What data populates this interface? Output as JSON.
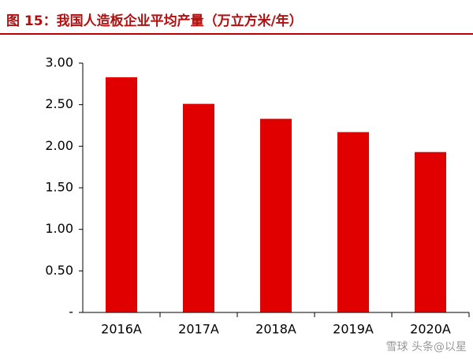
{
  "chart_data": {
    "type": "bar",
    "title": "图 15：我国人造板企业平均产量（万立方米/年）",
    "categories": [
      "2016A",
      "2017A",
      "2018A",
      "2019A",
      "2020A"
    ],
    "values": [
      2.83,
      2.51,
      2.33,
      2.17,
      1.93
    ],
    "color": "#e00000",
    "ylim": [
      0,
      3
    ],
    "yticks": [
      {
        "value": 0,
        "label": "-"
      },
      {
        "value": 0.5,
        "label": "0.50"
      },
      {
        "value": 1,
        "label": "1.00"
      },
      {
        "value": 1.5,
        "label": "1.50"
      },
      {
        "value": 2,
        "label": "2.00"
      },
      {
        "value": 2.5,
        "label": "2.50"
      },
      {
        "value": 3,
        "label": "3.00"
      }
    ],
    "grid": false,
    "watermark": "雪球 头条@以星"
  }
}
